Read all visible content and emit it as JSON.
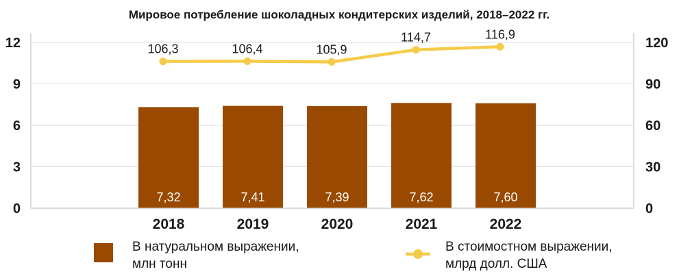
{
  "chart_data": {
    "type": "bar+line",
    "title": "Мировое потребление шоколадных кондитерских изделий, 2018–2022 гг.",
    "categories": [
      "2018",
      "2019",
      "2020",
      "2021",
      "2022"
    ],
    "series": [
      {
        "name": "В натуральном выражении, млн тонн",
        "name_lines": [
          "В натуральном выражении,",
          "млн тонн"
        ],
        "type": "bar",
        "axis": "left",
        "color": "#9a4a00",
        "values": [
          7.32,
          7.41,
          7.39,
          7.62,
          7.6
        ],
        "labels": [
          "7,32",
          "7,41",
          "7,39",
          "7,62",
          "7,60"
        ]
      },
      {
        "name": "В стоимостном выражении, млрд долл. США",
        "name_lines": [
          "В стоимостном выражении,",
          "млрд долл. США"
        ],
        "type": "line",
        "axis": "right",
        "color": "#f5cb4a",
        "values": [
          106.3,
          106.4,
          105.9,
          114.7,
          116.9
        ],
        "labels": [
          "106,3",
          "106,4",
          "105,9",
          "114,7",
          "116,9"
        ]
      }
    ],
    "y_left": {
      "range": [
        0,
        12
      ],
      "ticks": [
        0,
        3,
        6,
        9,
        12
      ]
    },
    "y_right": {
      "range": [
        0,
        120
      ],
      "ticks": [
        0,
        30,
        60,
        90,
        120
      ]
    },
    "grid": true,
    "legend_position": "bottom"
  }
}
